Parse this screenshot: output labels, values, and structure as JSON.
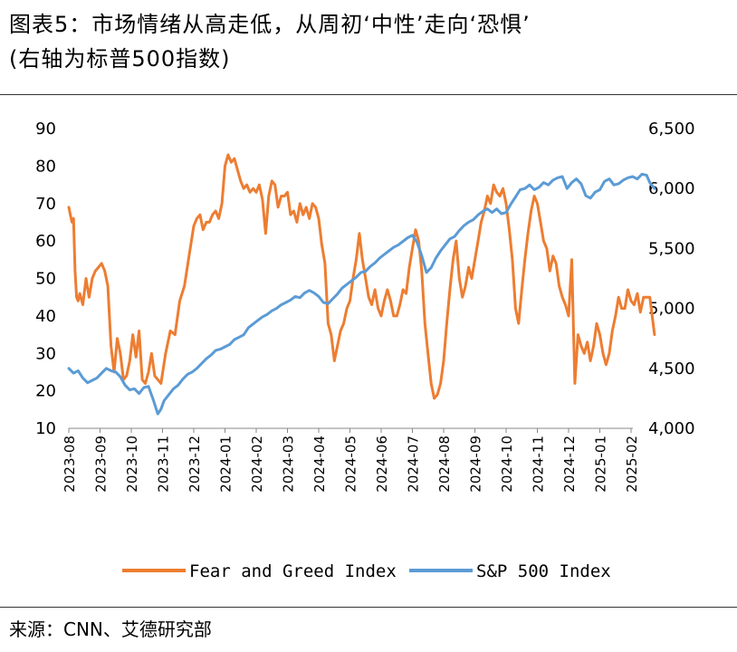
{
  "figure": {
    "title_line1": "图表5：市场情绪从高走低，从周初‘中性’走向‘恐惧’",
    "title_line2": "(右轴为标普500指数)",
    "source": "来源：CNN、艾德研究部"
  },
  "chart_data": {
    "type": "line",
    "title": "图表5：市场情绪从高走低，从周初‘中性’走向‘恐惧’ (右轴为标普500指数)",
    "x_categories": [
      "2023-08",
      "2023-09",
      "2023-10",
      "2023-11",
      "2023-12",
      "2024-01",
      "2024-02",
      "2024-03",
      "2024-04",
      "2024-05",
      "2024-06",
      "2024-07",
      "2024-08",
      "2024-09",
      "2024-10",
      "2024-11",
      "2024-12",
      "2025-01",
      "2025-02"
    ],
    "left_axis": {
      "ylim": [
        10,
        90
      ],
      "ticks": [
        "10",
        "20",
        "30",
        "40",
        "50",
        "60",
        "70",
        "80",
        "90"
      ]
    },
    "right_axis": {
      "ylim": [
        4000,
        6500
      ],
      "ticks": [
        "4,000",
        "4,500",
        "5,000",
        "5,500",
        "6,000",
        "6,500"
      ]
    },
    "legend": {
      "position": "bottom",
      "entries": [
        "Fear and Greed Index",
        "S&P 500 Index"
      ]
    },
    "colors": {
      "fear_greed": "#ED7D31",
      "sp500": "#5B9BD5"
    },
    "series": [
      {
        "name": "Fear and Greed Index",
        "axis": "left",
        "x": [
          0.0,
          0.05,
          0.1,
          0.15,
          0.2,
          0.25,
          0.3,
          0.35,
          0.45,
          0.55,
          0.65,
          0.75,
          0.85,
          0.95,
          1.05,
          1.15,
          1.25,
          1.35,
          1.45,
          1.55,
          1.65,
          1.75,
          1.85,
          1.95,
          2.05,
          2.15,
          2.25,
          2.35,
          2.45,
          2.55,
          2.65,
          2.75,
          2.85,
          2.95,
          3.1,
          3.25,
          3.4,
          3.55,
          3.7,
          3.85,
          4.0,
          4.1,
          4.2,
          4.3,
          4.4,
          4.5,
          4.6,
          4.7,
          4.8,
          4.9,
          5.0,
          5.1,
          5.2,
          5.3,
          5.4,
          5.5,
          5.6,
          5.7,
          5.8,
          5.9,
          6.0,
          6.1,
          6.2,
          6.3,
          6.4,
          6.5,
          6.6,
          6.7,
          6.8,
          6.9,
          7.0,
          7.1,
          7.2,
          7.3,
          7.4,
          7.5,
          7.6,
          7.7,
          7.8,
          7.9,
          8.0,
          8.1,
          8.2,
          8.3,
          8.4,
          8.5,
          8.6,
          8.7,
          8.8,
          8.9,
          9.0,
          9.1,
          9.2,
          9.3,
          9.4,
          9.5,
          9.6,
          9.7,
          9.8,
          9.9,
          10.0,
          10.1,
          10.2,
          10.3,
          10.4,
          10.5,
          10.6,
          10.7,
          10.8,
          10.9,
          11.0,
          11.1,
          11.2,
          11.3,
          11.4,
          11.5,
          11.6,
          11.7,
          11.8,
          11.9,
          12.0,
          12.1,
          12.2,
          12.3,
          12.4,
          12.5,
          12.6,
          12.7,
          12.8,
          12.9,
          13.0,
          13.1,
          13.2,
          13.3,
          13.4,
          13.5,
          13.6,
          13.7,
          13.8,
          13.9,
          14.0,
          14.1,
          14.2,
          14.3,
          14.4,
          14.5,
          14.6,
          14.7,
          14.8,
          14.9,
          15.0,
          15.1,
          15.2,
          15.3,
          15.4,
          15.5,
          15.6,
          15.7,
          15.8,
          15.9,
          16.0,
          16.1,
          16.2,
          16.3,
          16.4,
          16.5,
          16.6,
          16.7,
          16.8,
          16.9,
          17.0,
          17.1,
          17.2,
          17.3,
          17.4,
          17.5,
          17.6,
          17.7,
          17.8,
          17.9,
          18.0,
          18.1,
          18.2,
          18.3,
          18.4,
          18.6,
          18.75
        ],
        "values": [
          69,
          67,
          65,
          66,
          52,
          45,
          44,
          46,
          43,
          50,
          45,
          50,
          52,
          53,
          54,
          52,
          48,
          32,
          25,
          34,
          30,
          23,
          24,
          28,
          35,
          29,
          36,
          23,
          22,
          25,
          30,
          24,
          23,
          22,
          30,
          36,
          35,
          44,
          48,
          56,
          64,
          66,
          67,
          63,
          65,
          65,
          67,
          68,
          66,
          70,
          80,
          83,
          81,
          82,
          79,
          76,
          74,
          75,
          73,
          74,
          73,
          75,
          71,
          62,
          72,
          76,
          75,
          69,
          72,
          72,
          73,
          67,
          68,
          65,
          70,
          67,
          69,
          66,
          70,
          69,
          66,
          59,
          54,
          38,
          35,
          28,
          32,
          36,
          38,
          42,
          44,
          50,
          55,
          62,
          55,
          50,
          45,
          43,
          47,
          42,
          40,
          44,
          47,
          44,
          40,
          40,
          43,
          47,
          46,
          53,
          58,
          63,
          60,
          52,
          38,
          30,
          22,
          18,
          19,
          22,
          28,
          38,
          47,
          55,
          60,
          50,
          45,
          48,
          53,
          50,
          55,
          60,
          65,
          68,
          72,
          70,
          75,
          73,
          72,
          74,
          70,
          63,
          55,
          42,
          38,
          47,
          55,
          62,
          68,
          72,
          70,
          65,
          60,
          58,
          52,
          56,
          54,
          48,
          45,
          43,
          40,
          55,
          22,
          35,
          32,
          30,
          33,
          28,
          32,
          38,
          35,
          30,
          27,
          30,
          36,
          40,
          45,
          42,
          42,
          47,
          44,
          43,
          46,
          41,
          45,
          45,
          35
        ],
        "note": "Fear and Greed Index values in left-axis units at month positions (0 = 2023-08 tick)"
      },
      {
        "name": "S&P 500 Index",
        "axis": "right",
        "x": [
          0.0,
          0.15,
          0.3,
          0.45,
          0.6,
          0.75,
          0.9,
          1.05,
          1.2,
          1.35,
          1.5,
          1.65,
          1.8,
          1.95,
          2.1,
          2.25,
          2.4,
          2.55,
          2.7,
          2.85,
          2.95,
          3.05,
          3.2,
          3.35,
          3.5,
          3.65,
          3.8,
          3.95,
          4.1,
          4.25,
          4.4,
          4.55,
          4.7,
          4.85,
          5.0,
          5.15,
          5.3,
          5.45,
          5.6,
          5.75,
          5.9,
          6.05,
          6.2,
          6.35,
          6.5,
          6.65,
          6.8,
          6.95,
          7.1,
          7.25,
          7.4,
          7.55,
          7.7,
          7.85,
          8.0,
          8.15,
          8.3,
          8.45,
          8.6,
          8.75,
          8.9,
          9.05,
          9.2,
          9.35,
          9.5,
          9.65,
          9.8,
          9.95,
          10.1,
          10.25,
          10.4,
          10.55,
          10.7,
          10.85,
          11.0,
          11.15,
          11.3,
          11.45,
          11.6,
          11.75,
          11.9,
          12.05,
          12.2,
          12.35,
          12.5,
          12.65,
          12.8,
          12.95,
          13.1,
          13.25,
          13.4,
          13.55,
          13.7,
          13.85,
          14.0,
          14.15,
          14.3,
          14.45,
          14.6,
          14.75,
          14.9,
          15.05,
          15.2,
          15.35,
          15.5,
          15.65,
          15.8,
          15.95,
          16.1,
          16.25,
          16.4,
          16.55,
          16.7,
          16.85,
          17.0,
          17.15,
          17.3,
          17.45,
          17.6,
          17.75,
          17.9,
          18.05,
          18.2,
          18.35,
          18.5,
          18.6,
          18.75
        ],
        "values": [
          4500,
          4460,
          4480,
          4420,
          4380,
          4400,
          4420,
          4460,
          4500,
          4480,
          4470,
          4430,
          4360,
          4320,
          4330,
          4290,
          4340,
          4350,
          4240,
          4120,
          4160,
          4230,
          4280,
          4330,
          4360,
          4410,
          4450,
          4470,
          4500,
          4540,
          4580,
          4610,
          4650,
          4660,
          4680,
          4700,
          4740,
          4760,
          4780,
          4840,
          4870,
          4900,
          4930,
          4950,
          4980,
          5000,
          5030,
          5050,
          5070,
          5100,
          5090,
          5130,
          5150,
          5130,
          5100,
          5050,
          5040,
          5080,
          5120,
          5170,
          5200,
          5230,
          5260,
          5300,
          5310,
          5350,
          5380,
          5420,
          5450,
          5480,
          5510,
          5530,
          5560,
          5590,
          5610,
          5550,
          5440,
          5300,
          5340,
          5420,
          5480,
          5530,
          5580,
          5600,
          5650,
          5690,
          5720,
          5740,
          5780,
          5810,
          5830,
          5800,
          5830,
          5790,
          5800,
          5870,
          5930,
          5990,
          6000,
          6030,
          5990,
          6010,
          6050,
          6030,
          6070,
          6090,
          6100,
          6000,
          6050,
          6080,
          6040,
          5940,
          5920,
          5970,
          5990,
          6060,
          6080,
          6030,
          6040,
          6070,
          6090,
          6100,
          6080,
          6120,
          6110,
          6050,
          6000
        ],
        "note": "S&P 500 index level in right-axis units at month positions (0 = 2023-08 tick)"
      }
    ]
  }
}
